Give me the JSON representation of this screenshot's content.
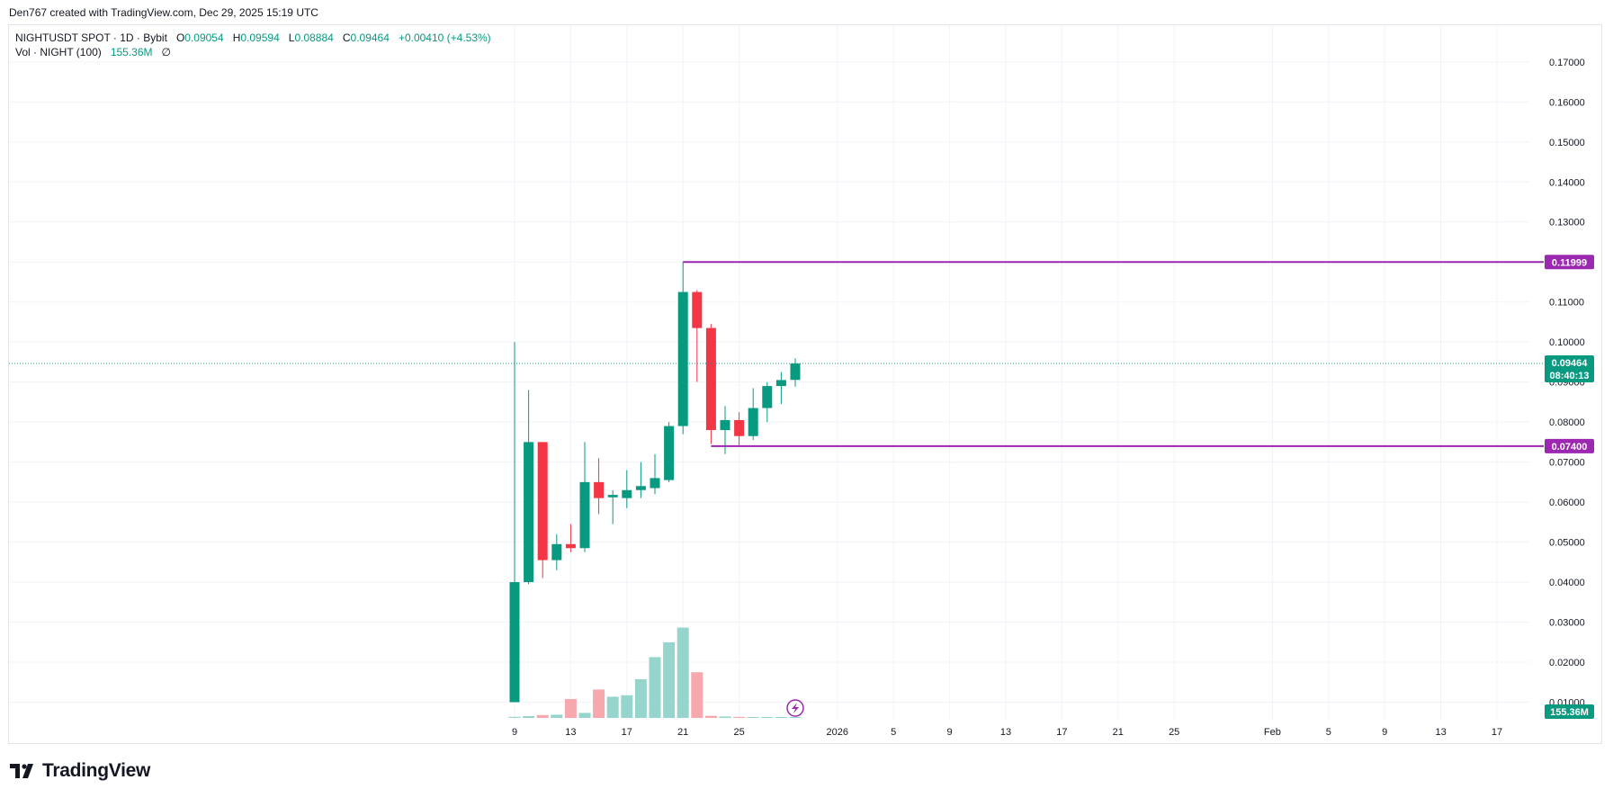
{
  "credit": "Den767 created with TradingView.com, Dec 29, 2025 15:19 UTC",
  "legend": {
    "symbol": "NIGHTUSDT SPOT · 1D · Bybit",
    "o_label": "O",
    "o": "0.09054",
    "h_label": "H",
    "h": "0.09594",
    "l_label": "L",
    "l": "0.08884",
    "c_label": "C",
    "c": "0.09464",
    "change": "+0.00410 (+4.53%)",
    "vol_label": "Vol · NIGHT (100)",
    "vol_value": "155.36M",
    "vol_icon": "∅"
  },
  "brand": {
    "name": "TradingView",
    "icon": "tradingview-logo-icon"
  },
  "colors": {
    "up": "#089981",
    "down": "#f23645",
    "level": "#9c27b0",
    "vol_up": "#95d5cc",
    "vol_down": "#f7a8ad"
  },
  "chart_data": {
    "type": "candlestick",
    "symbol": "NIGHTUSDT SPOT",
    "interval": "1D",
    "exchange": "Bybit",
    "ylim": [
      0.005,
      0.175
    ],
    "y_ticks": [
      "0.17000",
      "0.16000",
      "0.15000",
      "0.14000",
      "0.13000",
      "0.12000",
      "0.11000",
      "0.10000",
      "0.09000",
      "0.08000",
      "0.07000",
      "0.06000",
      "0.05000",
      "0.04000",
      "0.03000",
      "0.02000",
      "0.01000"
    ],
    "x_ticks": [
      {
        "day": 0,
        "label": "9"
      },
      {
        "day": 4,
        "label": "13"
      },
      {
        "day": 8,
        "label": "17"
      },
      {
        "day": 12,
        "label": "21"
      },
      {
        "day": 16,
        "label": "25"
      },
      {
        "day": 23,
        "label": "2026"
      },
      {
        "day": 27,
        "label": "5"
      },
      {
        "day": 31,
        "label": "9"
      },
      {
        "day": 35,
        "label": "13"
      },
      {
        "day": 39,
        "label": "17"
      },
      {
        "day": 43,
        "label": "21"
      },
      {
        "day": 47,
        "label": "25"
      },
      {
        "day": 54,
        "label": "Feb"
      },
      {
        "day": 58,
        "label": "5"
      },
      {
        "day": 62,
        "label": "9"
      },
      {
        "day": 66,
        "label": "13"
      },
      {
        "day": 70,
        "label": "17"
      }
    ],
    "candles": [
      {
        "day": 0,
        "o": 0.01,
        "h": 0.1,
        "l": 0.01,
        "c": 0.04
      },
      {
        "day": 1,
        "o": 0.04,
        "h": 0.088,
        "l": 0.0395,
        "c": 0.075
      },
      {
        "day": 2,
        "o": 0.075,
        "h": 0.075,
        "l": 0.041,
        "c": 0.0455
      },
      {
        "day": 3,
        "o": 0.0455,
        "h": 0.052,
        "l": 0.043,
        "c": 0.0495
      },
      {
        "day": 4,
        "o": 0.0495,
        "h": 0.0545,
        "l": 0.0475,
        "c": 0.0485
      },
      {
        "day": 5,
        "o": 0.0485,
        "h": 0.075,
        "l": 0.0475,
        "c": 0.065
      },
      {
        "day": 6,
        "o": 0.065,
        "h": 0.071,
        "l": 0.057,
        "c": 0.061
      },
      {
        "day": 7,
        "o": 0.0612,
        "h": 0.063,
        "l": 0.0545,
        "c": 0.0618
      },
      {
        "day": 8,
        "o": 0.061,
        "h": 0.068,
        "l": 0.0585,
        "c": 0.063
      },
      {
        "day": 9,
        "o": 0.063,
        "h": 0.07,
        "l": 0.061,
        "c": 0.064
      },
      {
        "day": 10,
        "o": 0.0635,
        "h": 0.072,
        "l": 0.062,
        "c": 0.066
      },
      {
        "day": 11,
        "o": 0.0655,
        "h": 0.08,
        "l": 0.065,
        "c": 0.079
      },
      {
        "day": 12,
        "o": 0.079,
        "h": 0.12,
        "l": 0.077,
        "c": 0.1125
      },
      {
        "day": 13,
        "o": 0.1125,
        "h": 0.113,
        "l": 0.09,
        "c": 0.1035
      },
      {
        "day": 14,
        "o": 0.1035,
        "h": 0.1045,
        "l": 0.0745,
        "c": 0.078
      },
      {
        "day": 15,
        "o": 0.078,
        "h": 0.084,
        "l": 0.072,
        "c": 0.0805
      },
      {
        "day": 16,
        "o": 0.0805,
        "h": 0.0825,
        "l": 0.074,
        "c": 0.0765
      },
      {
        "day": 17,
        "o": 0.0765,
        "h": 0.0885,
        "l": 0.0755,
        "c": 0.0835
      },
      {
        "day": 18,
        "o": 0.0835,
        "h": 0.09,
        "l": 0.08,
        "c": 0.089
      },
      {
        "day": 19,
        "o": 0.089,
        "h": 0.0925,
        "l": 0.0845,
        "c": 0.0905
      },
      {
        "day": 20,
        "o": 0.09054,
        "h": 0.09594,
        "l": 0.08884,
        "c": 0.09464
      }
    ],
    "volume": [
      0.006,
      0.01,
      0.016,
      0.018,
      0.105,
      0.028,
      0.158,
      0.118,
      0.126,
      0.215,
      0.338,
      0.42,
      0.502,
      0.254,
      0.012,
      0.008,
      0.006,
      0.004,
      0.004,
      0.003,
      0.003
    ],
    "levels": [
      {
        "price": 0.11999,
        "label": "0.11999",
        "from_day": 12
      },
      {
        "price": 0.074,
        "label": "0.07400",
        "from_day": 14
      }
    ],
    "last_price": {
      "label": "0.09464",
      "countdown": "08:40:13"
    },
    "volume_label": "155.36M",
    "grid": true
  }
}
